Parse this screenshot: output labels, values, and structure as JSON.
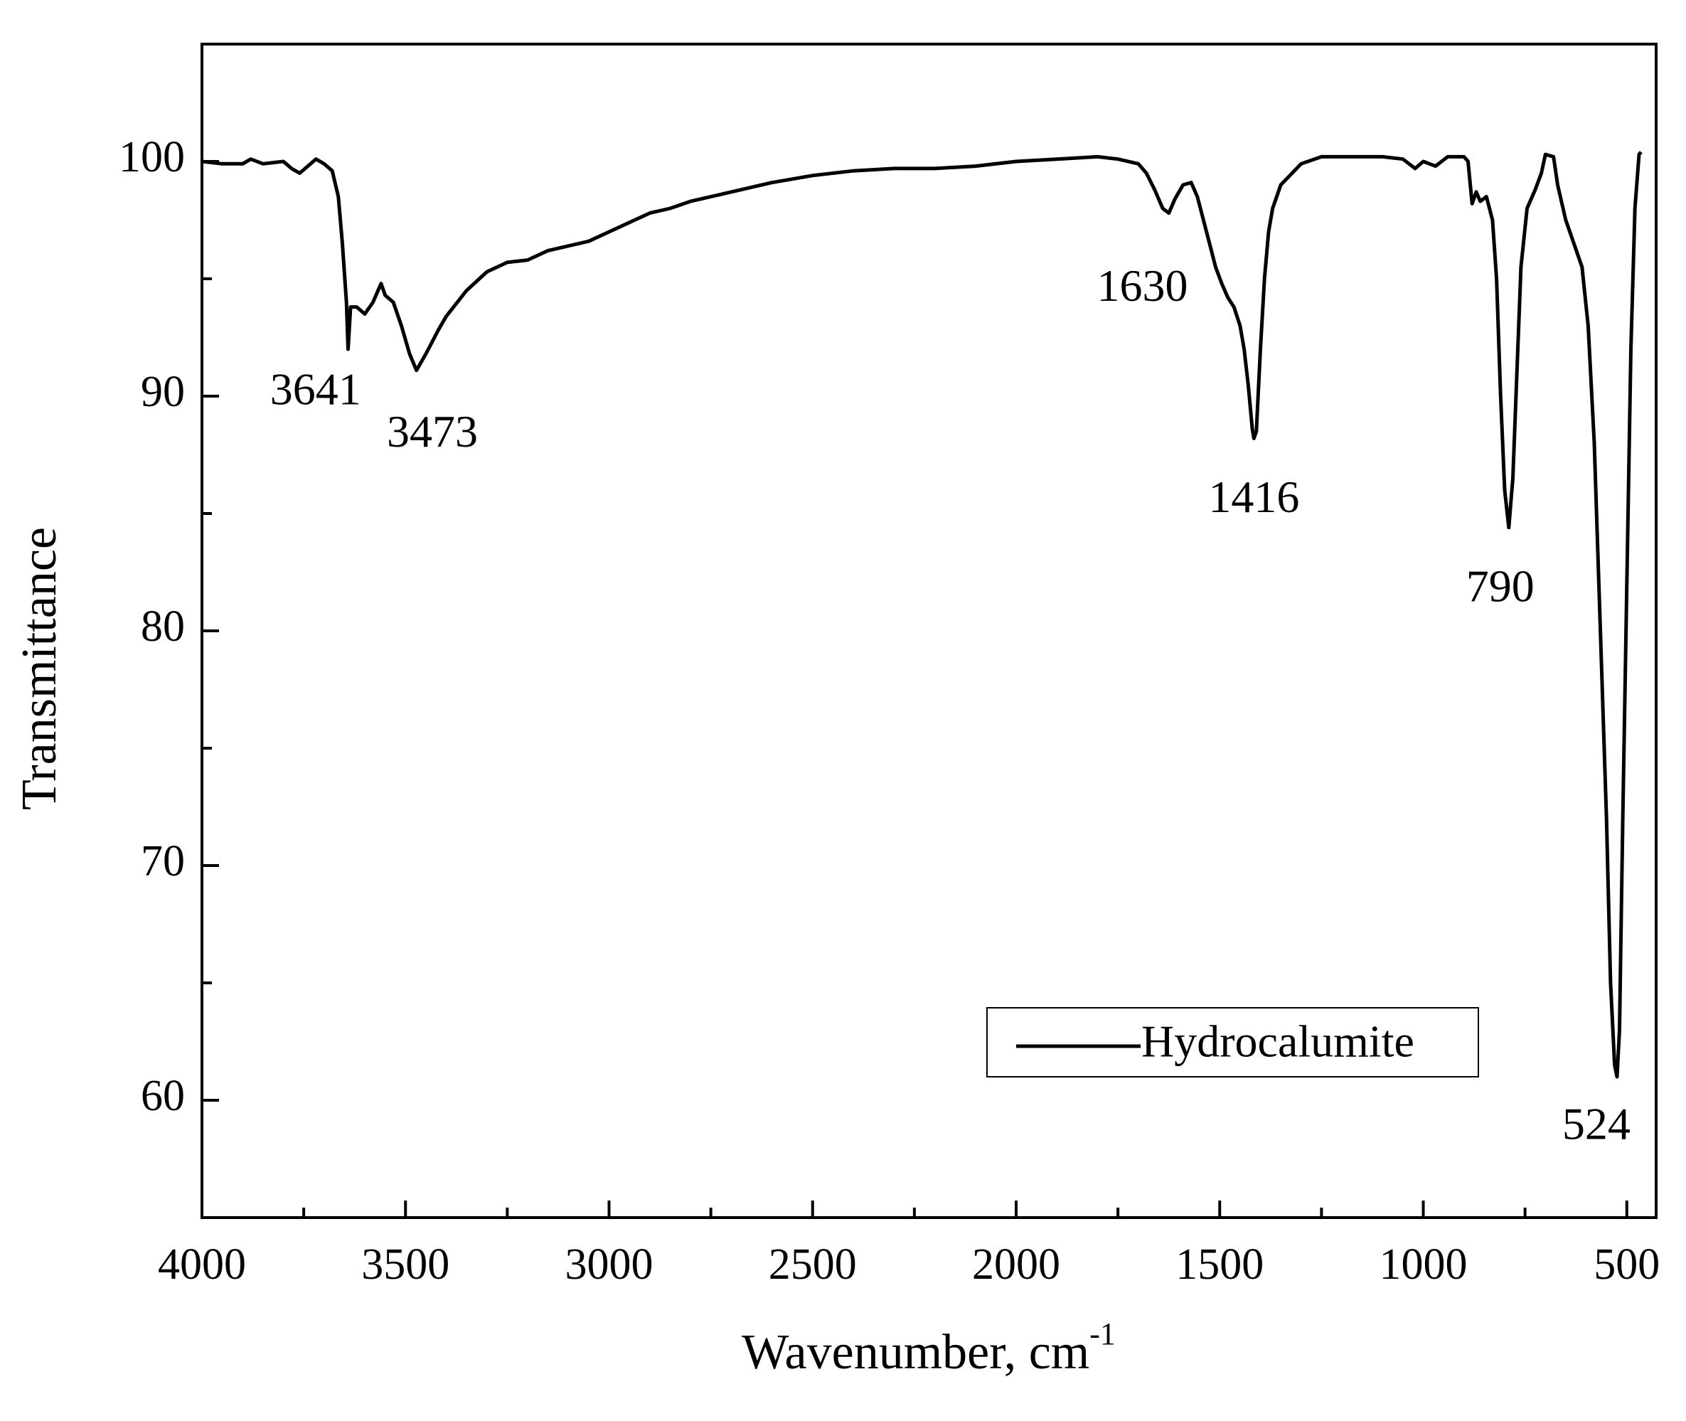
{
  "chart_data": {
    "type": "line",
    "xlabel": "Wavenumber, cm",
    "xlabel_superscript": "-1",
    "ylabel": "Transmittance",
    "x": [
      4000,
      3950,
      3900,
      3880,
      3850,
      3800,
      3780,
      3760,
      3740,
      3720,
      3700,
      3680,
      3665,
      3655,
      3645,
      3641,
      3635,
      3620,
      3600,
      3580,
      3560,
      3550,
      3530,
      3510,
      3490,
      3473,
      3450,
      3420,
      3400,
      3350,
      3300,
      3250,
      3200,
      3150,
      3100,
      3050,
      3000,
      2950,
      2900,
      2850,
      2800,
      2700,
      2600,
      2500,
      2400,
      2300,
      2200,
      2100,
      2000,
      1900,
      1800,
      1750,
      1700,
      1680,
      1660,
      1640,
      1625,
      1610,
      1590,
      1570,
      1555,
      1540,
      1525,
      1510,
      1495,
      1480,
      1465,
      1450,
      1440,
      1430,
      1420,
      1416,
      1410,
      1400,
      1390,
      1380,
      1370,
      1350,
      1300,
      1250,
      1200,
      1100,
      1050,
      1020,
      1000,
      970,
      940,
      900,
      890,
      880,
      870,
      860,
      845,
      830,
      820,
      810,
      800,
      790,
      780,
      770,
      760,
      745,
      725,
      710,
      700,
      680,
      670,
      650,
      630,
      610,
      595,
      580,
      565,
      550,
      540,
      530,
      524,
      518,
      510,
      500,
      490,
      480,
      470,
      465
    ],
    "series": [
      {
        "name": "Hydrocalumite",
        "color": "#000000",
        "values": [
          100.0,
          99.9,
          99.9,
          100.1,
          99.9,
          100.0,
          99.7,
          99.5,
          99.8,
          100.1,
          99.9,
          99.6,
          98.5,
          96.5,
          94.0,
          92.0,
          93.8,
          93.8,
          93.5,
          94.0,
          94.8,
          94.3,
          94.0,
          93.0,
          91.8,
          91.1,
          91.8,
          92.8,
          93.4,
          94.5,
          95.3,
          95.7,
          95.8,
          96.2,
          96.4,
          96.6,
          97.0,
          97.4,
          97.8,
          98.0,
          98.3,
          98.7,
          99.1,
          99.4,
          99.6,
          99.7,
          99.7,
          99.8,
          100.0,
          100.1,
          100.2,
          100.1,
          99.9,
          99.5,
          98.8,
          98.0,
          97.8,
          98.4,
          99.0,
          99.1,
          98.5,
          97.5,
          96.5,
          95.5,
          94.8,
          94.2,
          93.8,
          93.0,
          92.0,
          90.5,
          88.6,
          88.2,
          88.5,
          92.0,
          95.0,
          97.0,
          98.0,
          99.0,
          99.9,
          100.2,
          100.2,
          100.2,
          100.1,
          99.7,
          100.0,
          99.8,
          100.2,
          100.2,
          100.0,
          98.2,
          98.7,
          98.3,
          98.5,
          97.5,
          95.0,
          90.0,
          86.0,
          84.4,
          86.5,
          91.0,
          95.5,
          98.0,
          98.8,
          99.5,
          100.3,
          100.2,
          99.0,
          97.5,
          96.5,
          95.5,
          93.0,
          88.0,
          80.0,
          72.0,
          65.0,
          61.5,
          61.0,
          63.0,
          72.0,
          82.0,
          92.0,
          98.0,
          100.3,
          100.4
        ]
      }
    ],
    "xlim": [
      4000,
      428
    ],
    "ylim": [
      55,
      105
    ],
    "xticks": [
      4000,
      3500,
      3000,
      2500,
      2000,
      1500,
      1000,
      500
    ],
    "xminorticks": [
      3750,
      3250,
      2750,
      2250,
      1750,
      1250,
      750
    ],
    "yticks": [
      60,
      70,
      80,
      90,
      100
    ],
    "yminorticks": [
      65,
      75,
      85,
      95
    ],
    "annotations": [
      {
        "text": "3641",
        "x": 3721,
        "y": 90.1
      },
      {
        "text": "3473",
        "x": 3434,
        "y": 88.3
      },
      {
        "text": "1630",
        "x": 1690,
        "y": 94.5
      },
      {
        "text": "1416",
        "x": 1416,
        "y": 85.5
      },
      {
        "text": "790",
        "x": 811,
        "y": 81.7
      },
      {
        "text": "524",
        "x": 575,
        "y": 58.8
      }
    ],
    "legend": "lower right",
    "grid": false
  }
}
